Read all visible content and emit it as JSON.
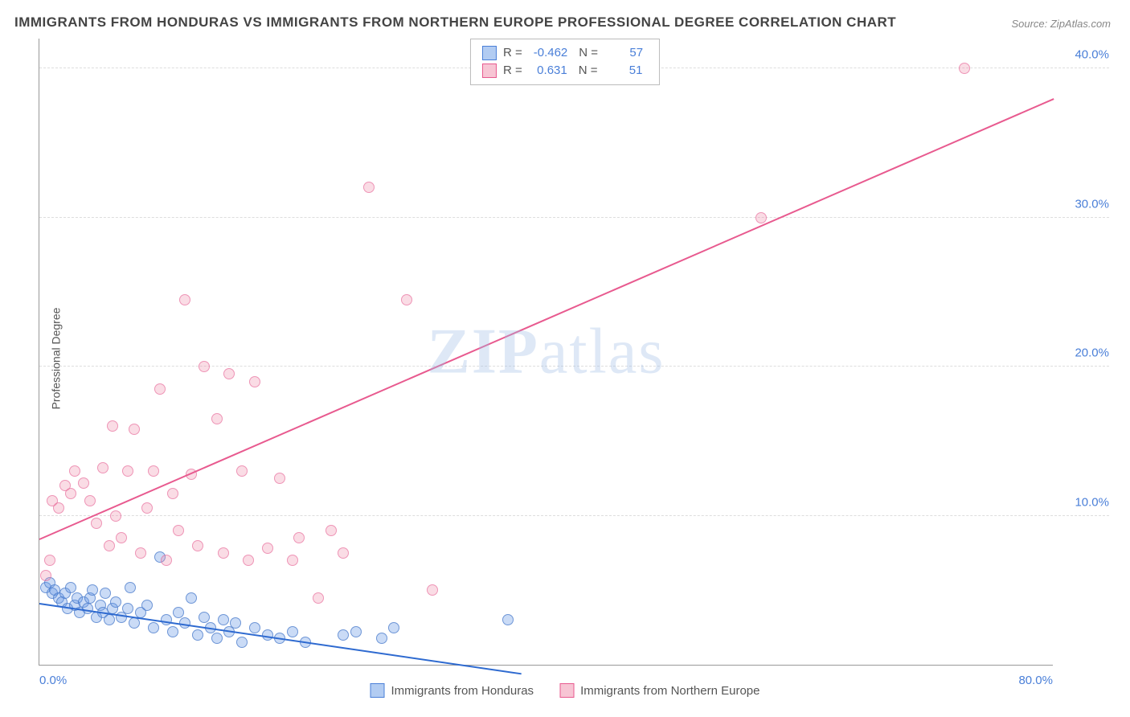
{
  "title": "IMMIGRANTS FROM HONDURAS VS IMMIGRANTS FROM NORTHERN EUROPE PROFESSIONAL DEGREE CORRELATION CHART",
  "source": "Source: ZipAtlas.com",
  "y_axis_label": "Professional Degree",
  "watermark": "ZIPatlas",
  "chart": {
    "type": "scatter",
    "xlim": [
      0,
      80
    ],
    "ylim": [
      0,
      42
    ],
    "x_ticks": [
      {
        "v": 0,
        "label": "0.0%",
        "pos": "left"
      },
      {
        "v": 80,
        "label": "80.0%",
        "pos": "right"
      }
    ],
    "y_ticks": [
      {
        "v": 10,
        "label": "10.0%"
      },
      {
        "v": 20,
        "label": "20.0%"
      },
      {
        "v": 30,
        "label": "30.0%"
      },
      {
        "v": 40,
        "label": "40.0%"
      }
    ],
    "grid_color": "#dddddd",
    "background_color": "#ffffff",
    "marker_radius": 7,
    "series": [
      {
        "name": "Immigrants from Honduras",
        "color_fill": "rgba(102,153,230,0.35)",
        "color_stroke": "#4a7fd8",
        "r": -0.462,
        "n": 57,
        "trend": {
          "x1": 0,
          "y1": 4.2,
          "x2": 38,
          "y2": -0.5
        },
        "points": [
          [
            0.5,
            5.2
          ],
          [
            0.8,
            5.5
          ],
          [
            1,
            4.8
          ],
          [
            1.2,
            5.0
          ],
          [
            1.5,
            4.5
          ],
          [
            1.8,
            4.2
          ],
          [
            2,
            4.8
          ],
          [
            2.2,
            3.8
          ],
          [
            2.5,
            5.2
          ],
          [
            2.8,
            4.0
          ],
          [
            3,
            4.5
          ],
          [
            3.2,
            3.5
          ],
          [
            3.5,
            4.2
          ],
          [
            3.8,
            3.8
          ],
          [
            4,
            4.5
          ],
          [
            4.2,
            5.0
          ],
          [
            4.5,
            3.2
          ],
          [
            4.8,
            4.0
          ],
          [
            5,
            3.5
          ],
          [
            5.2,
            4.8
          ],
          [
            5.5,
            3.0
          ],
          [
            5.8,
            3.8
          ],
          [
            6,
            4.2
          ],
          [
            6.5,
            3.2
          ],
          [
            7,
            3.8
          ],
          [
            7.2,
            5.2
          ],
          [
            7.5,
            2.8
          ],
          [
            8,
            3.5
          ],
          [
            8.5,
            4.0
          ],
          [
            9,
            2.5
          ],
          [
            9.5,
            7.2
          ],
          [
            10,
            3.0
          ],
          [
            10.5,
            2.2
          ],
          [
            11,
            3.5
          ],
          [
            11.5,
            2.8
          ],
          [
            12,
            4.5
          ],
          [
            12.5,
            2.0
          ],
          [
            13,
            3.2
          ],
          [
            13.5,
            2.5
          ],
          [
            14,
            1.8
          ],
          [
            14.5,
            3.0
          ],
          [
            15,
            2.2
          ],
          [
            15.5,
            2.8
          ],
          [
            16,
            1.5
          ],
          [
            17,
            2.5
          ],
          [
            18,
            2.0
          ],
          [
            19,
            1.8
          ],
          [
            20,
            2.2
          ],
          [
            21,
            1.5
          ],
          [
            24,
            2.0
          ],
          [
            25,
            2.2
          ],
          [
            27,
            1.8
          ],
          [
            28,
            2.5
          ],
          [
            37,
            3.0
          ]
        ]
      },
      {
        "name": "Immigrants from Northern Europe",
        "color_fill": "rgba(240,140,170,0.3)",
        "color_stroke": "#e85a8f",
        "r": 0.631,
        "n": 51,
        "trend": {
          "x1": 0,
          "y1": 8.5,
          "x2": 80,
          "y2": 38
        },
        "points": [
          [
            0.5,
            6.0
          ],
          [
            0.8,
            7.0
          ],
          [
            1,
            11.0
          ],
          [
            1.5,
            10.5
          ],
          [
            2,
            12.0
          ],
          [
            2.5,
            11.5
          ],
          [
            2.8,
            13.0
          ],
          [
            3.5,
            12.2
          ],
          [
            4,
            11.0
          ],
          [
            4.5,
            9.5
          ],
          [
            5,
            13.2
          ],
          [
            5.5,
            8.0
          ],
          [
            5.8,
            16.0
          ],
          [
            6,
            10.0
          ],
          [
            6.5,
            8.5
          ],
          [
            7,
            13.0
          ],
          [
            7.5,
            15.8
          ],
          [
            8,
            7.5
          ],
          [
            8.5,
            10.5
          ],
          [
            9,
            13.0
          ],
          [
            9.5,
            18.5
          ],
          [
            10,
            7.0
          ],
          [
            10.5,
            11.5
          ],
          [
            11,
            9.0
          ],
          [
            11.5,
            24.5
          ],
          [
            12,
            12.8
          ],
          [
            12.5,
            8.0
          ],
          [
            13,
            20.0
          ],
          [
            14,
            16.5
          ],
          [
            14.5,
            7.5
          ],
          [
            15,
            19.5
          ],
          [
            16,
            13.0
          ],
          [
            16.5,
            7.0
          ],
          [
            17,
            19.0
          ],
          [
            18,
            7.8
          ],
          [
            19,
            12.5
          ],
          [
            20,
            7.0
          ],
          [
            20.5,
            8.5
          ],
          [
            22,
            4.5
          ],
          [
            23,
            9.0
          ],
          [
            24,
            7.5
          ],
          [
            26,
            32.0
          ],
          [
            29,
            24.5
          ],
          [
            31,
            5.0
          ],
          [
            57,
            30.0
          ],
          [
            73,
            40.0
          ]
        ]
      }
    ]
  },
  "top_legend": {
    "rows": [
      {
        "swatch": "blue",
        "r_label": "R =",
        "r_val": "-0.462",
        "n_label": "N =",
        "n_val": "57"
      },
      {
        "swatch": "pink",
        "r_label": "R =",
        "r_val": "0.631",
        "n_label": "N =",
        "n_val": "51"
      }
    ]
  },
  "bottom_legend": [
    {
      "swatch": "blue",
      "label": "Immigrants from Honduras"
    },
    {
      "swatch": "pink",
      "label": "Immigrants from Northern Europe"
    }
  ]
}
